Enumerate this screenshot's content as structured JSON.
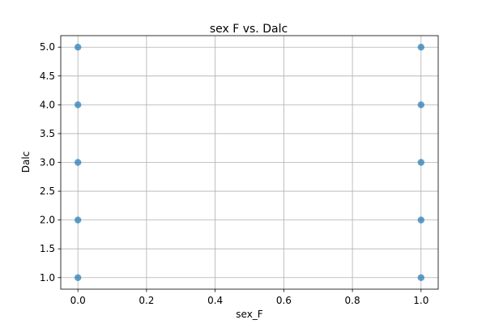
{
  "chart_data": {
    "type": "scatter",
    "title": "sex F vs. Dalc",
    "xlabel": "sex_F",
    "ylabel": "Dalc",
    "xlim": [
      -0.05,
      1.05
    ],
    "ylim": [
      0.8,
      5.2
    ],
    "xticks": [
      "0.0",
      "0.2",
      "0.4",
      "0.6",
      "0.8",
      "1.0"
    ],
    "yticks": [
      "1.0",
      "1.5",
      "2.0",
      "2.5",
      "3.0",
      "3.5",
      "4.0",
      "4.5",
      "5.0"
    ],
    "grid": true,
    "marker_color": "#1f77b4",
    "points": [
      {
        "x": 0,
        "y": 1
      },
      {
        "x": 0,
        "y": 2
      },
      {
        "x": 0,
        "y": 3
      },
      {
        "x": 0,
        "y": 4
      },
      {
        "x": 0,
        "y": 5
      },
      {
        "x": 1,
        "y": 1
      },
      {
        "x": 1,
        "y": 2
      },
      {
        "x": 1,
        "y": 3
      },
      {
        "x": 1,
        "y": 4
      },
      {
        "x": 1,
        "y": 5
      }
    ]
  }
}
